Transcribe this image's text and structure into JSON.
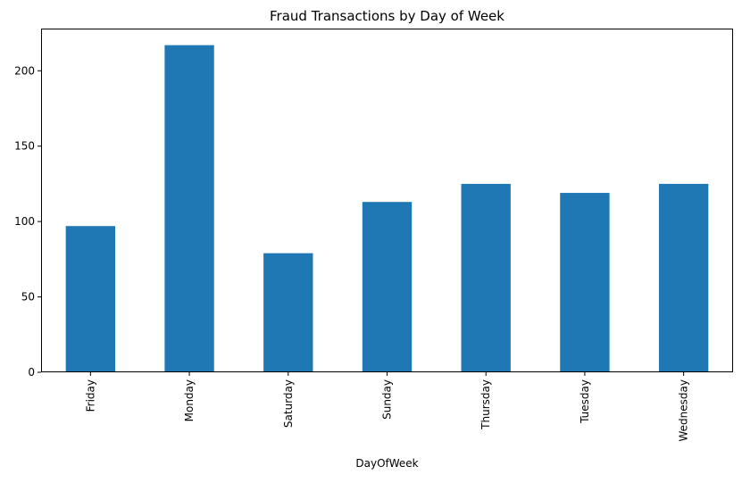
{
  "chart_data": {
    "type": "bar",
    "title": "Fraud Transactions by Day of Week",
    "xlabel": "DayOfWeek",
    "ylabel": "",
    "categories": [
      "Friday",
      "Monday",
      "Saturday",
      "Sunday",
      "Thursday",
      "Tuesday",
      "Wednesday"
    ],
    "values": [
      97,
      217,
      79,
      113,
      125,
      119,
      125
    ],
    "ylim": [
      0,
      228
    ],
    "yticks": [
      0,
      50,
      100,
      150,
      200
    ],
    "grid": false,
    "legend": false,
    "bar_color": "#1f77b4"
  }
}
